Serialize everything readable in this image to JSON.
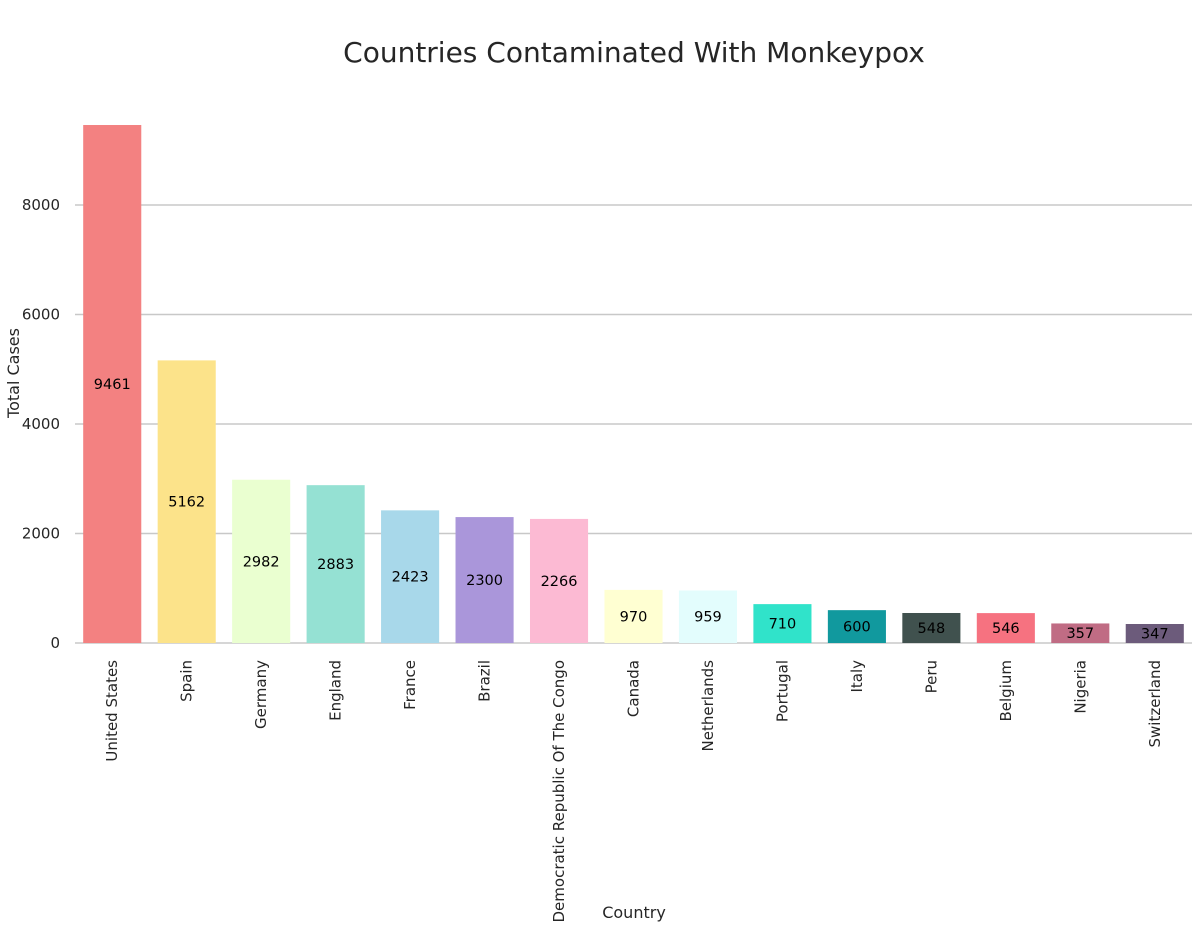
{
  "chart_data": {
    "type": "bar",
    "title": "Countries Contaminated With Monkeypox",
    "xlabel": "Country",
    "ylabel": "Total Cases",
    "categories": [
      "United States",
      "Spain",
      "Germany",
      "England",
      "France",
      "Brazil",
      "Democratic Republic Of The Congo",
      "Canada",
      "Netherlands",
      "Portugal",
      "Italy",
      "Peru",
      "Belgium",
      "Nigeria",
      "Switzerland"
    ],
    "values": [
      9461,
      5162,
      2982,
      2883,
      2423,
      2300,
      2266,
      970,
      959,
      710,
      600,
      548,
      546,
      357,
      347
    ],
    "colors": [
      "#f38181",
      "#fce38a",
      "#eaffd0",
      "#95e1d3",
      "#a8d8ea",
      "#aa96da",
      "#fcbad3",
      "#ffffd2",
      "#e3fdfd",
      "#30e3ca",
      "#11999e",
      "#40514e",
      "#f67280",
      "#c06c84",
      "#6c5b7b"
    ],
    "yticks": [
      0,
      2000,
      4000,
      6000,
      8000
    ],
    "ylim": [
      0,
      9461
    ],
    "grid": true,
    "legend": "none"
  }
}
